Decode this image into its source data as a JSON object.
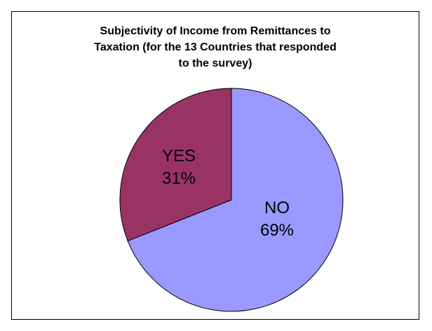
{
  "chart_data": {
    "type": "pie",
    "title_lines": [
      "Subjectivity of Income from Remittances to",
      "Taxation (for the 13 Countries that responded",
      "to the survey)"
    ],
    "slices": [
      {
        "label": "NO",
        "percent_label": "69%",
        "value": 69,
        "color": "#9999ff"
      },
      {
        "label": "YES",
        "percent_label": "31%",
        "value": 31,
        "color": "#993366"
      }
    ],
    "legend": "none"
  }
}
